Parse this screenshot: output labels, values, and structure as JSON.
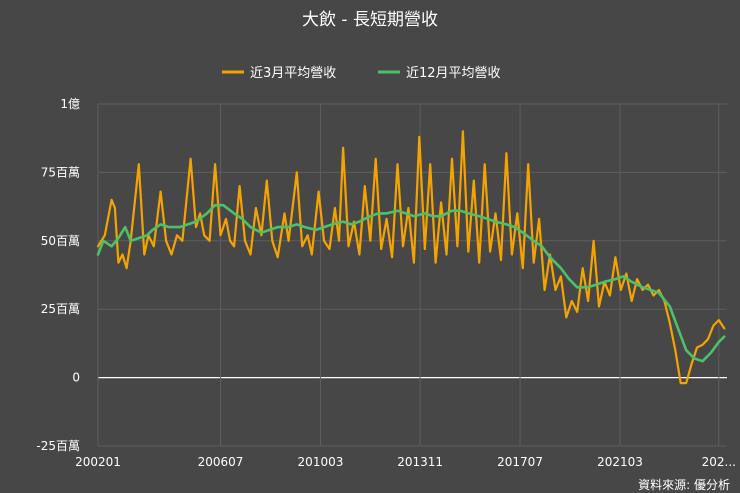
{
  "chart_data": {
    "type": "line",
    "title": "大飲 - 長短期營收",
    "source": "資料來源: 優分析",
    "y_tick_labels": [
      "1億",
      "75百萬",
      "50百萬",
      "25百萬",
      "0",
      "-25百萬"
    ],
    "y_ticks": [
      100,
      75,
      50,
      25,
      0,
      -25
    ],
    "ylim": [
      -25,
      100
    ],
    "x_tick_labels": [
      "200201",
      "200607",
      "201003",
      "201311",
      "201707",
      "202103",
      "202..."
    ],
    "x_ticks": [
      2002.0,
      2006.5,
      2010.17,
      2013.83,
      2017.5,
      2021.17,
      2024.8
    ],
    "xlim": [
      2002.0,
      2025.1
    ],
    "grid": true,
    "legend_position": "top",
    "series": [
      {
        "name": "近3月平均營收",
        "color": "#f5a300",
        "points": [
          [
            2002.0,
            48
          ],
          [
            2002.25,
            52
          ],
          [
            2002.5,
            65
          ],
          [
            2002.62,
            62
          ],
          [
            2002.75,
            42
          ],
          [
            2002.9,
            45
          ],
          [
            2003.05,
            40
          ],
          [
            2003.2,
            50
          ],
          [
            2003.5,
            78
          ],
          [
            2003.7,
            45
          ],
          [
            2003.85,
            52
          ],
          [
            2004.05,
            48
          ],
          [
            2004.3,
            68
          ],
          [
            2004.5,
            50
          ],
          [
            2004.7,
            45
          ],
          [
            2004.9,
            52
          ],
          [
            2005.1,
            50
          ],
          [
            2005.4,
            80
          ],
          [
            2005.6,
            55
          ],
          [
            2005.75,
            60
          ],
          [
            2005.9,
            52
          ],
          [
            2006.1,
            50
          ],
          [
            2006.3,
            78
          ],
          [
            2006.5,
            52
          ],
          [
            2006.7,
            58
          ],
          [
            2006.85,
            50
          ],
          [
            2007.0,
            48
          ],
          [
            2007.2,
            70
          ],
          [
            2007.4,
            50
          ],
          [
            2007.6,
            45
          ],
          [
            2007.8,
            62
          ],
          [
            2008.0,
            52
          ],
          [
            2008.2,
            72
          ],
          [
            2008.4,
            50
          ],
          [
            2008.6,
            44
          ],
          [
            2008.85,
            60
          ],
          [
            2009.0,
            50
          ],
          [
            2009.3,
            75
          ],
          [
            2009.5,
            48
          ],
          [
            2009.7,
            52
          ],
          [
            2009.85,
            45
          ],
          [
            2010.1,
            68
          ],
          [
            2010.3,
            50
          ],
          [
            2010.5,
            47
          ],
          [
            2010.7,
            62
          ],
          [
            2010.85,
            50
          ],
          [
            2011.0,
            84
          ],
          [
            2011.2,
            48
          ],
          [
            2011.4,
            57
          ],
          [
            2011.6,
            45
          ],
          [
            2011.8,
            70
          ],
          [
            2012.0,
            50
          ],
          [
            2012.2,
            80
          ],
          [
            2012.4,
            47
          ],
          [
            2012.6,
            58
          ],
          [
            2012.8,
            44
          ],
          [
            2013.0,
            78
          ],
          [
            2013.2,
            48
          ],
          [
            2013.4,
            62
          ],
          [
            2013.6,
            42
          ],
          [
            2013.8,
            88
          ],
          [
            2014.0,
            47
          ],
          [
            2014.2,
            78
          ],
          [
            2014.4,
            42
          ],
          [
            2014.6,
            64
          ],
          [
            2014.8,
            45
          ],
          [
            2015.0,
            80
          ],
          [
            2015.2,
            48
          ],
          [
            2015.4,
            90
          ],
          [
            2015.6,
            46
          ],
          [
            2015.8,
            72
          ],
          [
            2016.0,
            42
          ],
          [
            2016.2,
            78
          ],
          [
            2016.4,
            46
          ],
          [
            2016.6,
            60
          ],
          [
            2016.8,
            43
          ],
          [
            2017.0,
            82
          ],
          [
            2017.2,
            45
          ],
          [
            2017.4,
            60
          ],
          [
            2017.6,
            40
          ],
          [
            2017.8,
            78
          ],
          [
            2018.0,
            42
          ],
          [
            2018.2,
            58
          ],
          [
            2018.4,
            32
          ],
          [
            2018.6,
            45
          ],
          [
            2018.8,
            32
          ],
          [
            2019.0,
            37
          ],
          [
            2019.2,
            22
          ],
          [
            2019.4,
            28
          ],
          [
            2019.6,
            24
          ],
          [
            2019.8,
            40
          ],
          [
            2020.0,
            28
          ],
          [
            2020.2,
            50
          ],
          [
            2020.4,
            26
          ],
          [
            2020.6,
            35
          ],
          [
            2020.8,
            30
          ],
          [
            2021.0,
            44
          ],
          [
            2021.2,
            32
          ],
          [
            2021.4,
            38
          ],
          [
            2021.6,
            28
          ],
          [
            2021.8,
            36
          ],
          [
            2022.0,
            32
          ],
          [
            2022.2,
            34
          ],
          [
            2022.4,
            30
          ],
          [
            2022.6,
            32
          ],
          [
            2022.8,
            28
          ],
          [
            2023.0,
            20
          ],
          [
            2023.2,
            10
          ],
          [
            2023.4,
            -2
          ],
          [
            2023.6,
            -2
          ],
          [
            2023.8,
            5
          ],
          [
            2024.0,
            11
          ],
          [
            2024.2,
            12
          ],
          [
            2024.4,
            14
          ],
          [
            2024.6,
            19
          ],
          [
            2024.8,
            21
          ],
          [
            2025.0,
            18
          ]
        ]
      },
      {
        "name": "近12月平均營收",
        "color": "#4cc16b",
        "points": [
          [
            2002.0,
            45
          ],
          [
            2002.2,
            50
          ],
          [
            2002.5,
            48
          ],
          [
            2002.75,
            51
          ],
          [
            2003.0,
            55
          ],
          [
            2003.2,
            50
          ],
          [
            2003.5,
            51
          ],
          [
            2003.8,
            52
          ],
          [
            2004.0,
            54
          ],
          [
            2004.3,
            56
          ],
          [
            2004.6,
            55
          ],
          [
            2005.0,
            55
          ],
          [
            2005.3,
            56
          ],
          [
            2005.6,
            57
          ],
          [
            2006.0,
            60
          ],
          [
            2006.3,
            63
          ],
          [
            2006.6,
            63
          ],
          [
            2007.0,
            60
          ],
          [
            2007.3,
            58
          ],
          [
            2007.6,
            55
          ],
          [
            2008.0,
            53
          ],
          [
            2008.3,
            54
          ],
          [
            2008.6,
            55
          ],
          [
            2009.0,
            55
          ],
          [
            2009.3,
            56
          ],
          [
            2009.6,
            55
          ],
          [
            2010.0,
            54
          ],
          [
            2010.3,
            55
          ],
          [
            2010.6,
            56
          ],
          [
            2011.0,
            57
          ],
          [
            2011.3,
            56
          ],
          [
            2011.6,
            57
          ],
          [
            2012.0,
            59
          ],
          [
            2012.3,
            60
          ],
          [
            2012.6,
            60
          ],
          [
            2013.0,
            61
          ],
          [
            2013.3,
            60
          ],
          [
            2013.6,
            59
          ],
          [
            2014.0,
            60
          ],
          [
            2014.3,
            59
          ],
          [
            2014.6,
            59
          ],
          [
            2015.0,
            61
          ],
          [
            2015.3,
            61
          ],
          [
            2015.6,
            60
          ],
          [
            2016.0,
            59
          ],
          [
            2016.3,
            58
          ],
          [
            2016.6,
            57
          ],
          [
            2017.0,
            56
          ],
          [
            2017.3,
            55
          ],
          [
            2017.6,
            53
          ],
          [
            2018.0,
            50
          ],
          [
            2018.3,
            48
          ],
          [
            2018.6,
            44
          ],
          [
            2019.0,
            40
          ],
          [
            2019.3,
            36
          ],
          [
            2019.6,
            33
          ],
          [
            2020.0,
            33
          ],
          [
            2020.3,
            34
          ],
          [
            2020.6,
            35
          ],
          [
            2021.0,
            36
          ],
          [
            2021.3,
            37
          ],
          [
            2021.6,
            35
          ],
          [
            2022.0,
            33
          ],
          [
            2022.3,
            32
          ],
          [
            2022.6,
            31
          ],
          [
            2023.0,
            26
          ],
          [
            2023.3,
            18
          ],
          [
            2023.6,
            10
          ],
          [
            2023.9,
            7
          ],
          [
            2024.2,
            6
          ],
          [
            2024.5,
            9
          ],
          [
            2024.8,
            13
          ],
          [
            2025.0,
            15
          ]
        ]
      }
    ]
  }
}
